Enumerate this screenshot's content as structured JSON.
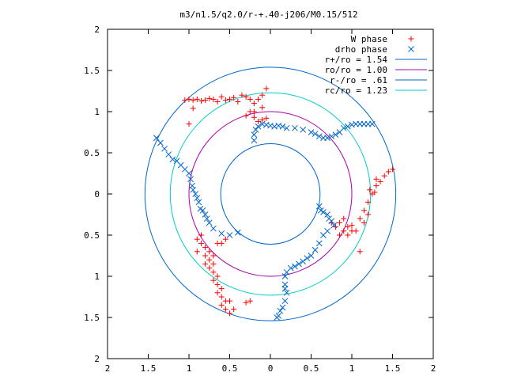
{
  "chart_data": {
    "type": "scatter",
    "title": "m3/n1.5/q2.0/r-+.40-j206/M0.15/512",
    "xlabel": "",
    "ylabel": "",
    "xlim": [
      -2,
      2
    ],
    "ylim": [
      -2,
      2
    ],
    "x_ticks": [
      {
        "value": -2,
        "label": "2"
      },
      {
        "value": -1.5,
        "label": "1.5"
      },
      {
        "value": -1,
        "label": "1"
      },
      {
        "value": -0.5,
        "label": "0.5"
      },
      {
        "value": 0,
        "label": "0"
      },
      {
        "value": 0.5,
        "label": "0.5"
      },
      {
        "value": 1,
        "label": "1"
      },
      {
        "value": 1.5,
        "label": "1.5"
      },
      {
        "value": 2,
        "label": "2"
      }
    ],
    "y_ticks": [
      {
        "value": 2,
        "label": "2"
      },
      {
        "value": 1.5,
        "label": "1.5"
      },
      {
        "value": 1,
        "label": "1"
      },
      {
        "value": 0.5,
        "label": "0.5"
      },
      {
        "value": 0,
        "label": "0"
      },
      {
        "value": -0.5,
        "label": "0.5"
      },
      {
        "value": -1,
        "label": "1"
      },
      {
        "value": -1.5,
        "label": "1.5"
      },
      {
        "value": -2,
        "label": "2"
      }
    ],
    "grid": false,
    "legend_position": "top-right",
    "series": [
      {
        "name": "W phase",
        "marker": "plus",
        "color": "#ff0000",
        "points": [
          [
            -0.05,
            1.28
          ],
          [
            -0.1,
            1.2
          ],
          [
            -0.15,
            1.15
          ],
          [
            -0.2,
            1.1
          ],
          [
            -0.25,
            1.15
          ],
          [
            -0.3,
            1.18
          ],
          [
            -0.35,
            1.2
          ],
          [
            -0.4,
            1.12
          ],
          [
            -0.45,
            1.17
          ],
          [
            -0.5,
            1.15
          ],
          [
            -0.55,
            1.14
          ],
          [
            -0.6,
            1.18
          ],
          [
            -0.65,
            1.12
          ],
          [
            -0.7,
            1.15
          ],
          [
            -0.75,
            1.16
          ],
          [
            -0.8,
            1.14
          ],
          [
            -0.85,
            1.13
          ],
          [
            -0.9,
            1.15
          ],
          [
            -0.95,
            1.14
          ],
          [
            -1.0,
            1.15
          ],
          [
            -1.05,
            1.14
          ],
          [
            -0.25,
            1.0
          ],
          [
            -0.3,
            0.95
          ],
          [
            -0.2,
            0.93
          ],
          [
            -0.1,
            0.9
          ],
          [
            -0.15,
            0.88
          ],
          [
            -0.05,
            0.92
          ],
          [
            -0.1,
            1.05
          ],
          [
            -0.2,
            1.0
          ],
          [
            -0.95,
            1.04
          ],
          [
            -1.0,
            0.85
          ],
          [
            0.8,
            -0.4
          ],
          [
            0.85,
            -0.35
          ],
          [
            0.9,
            -0.45
          ],
          [
            0.95,
            -0.4
          ],
          [
            1.0,
            -0.38
          ],
          [
            1.05,
            -0.45
          ],
          [
            0.85,
            -0.5
          ],
          [
            0.9,
            -0.3
          ],
          [
            0.95,
            -0.5
          ],
          [
            1.0,
            -0.45
          ],
          [
            0.75,
            -0.35
          ],
          [
            1.1,
            -0.3
          ],
          [
            1.15,
            -0.2
          ],
          [
            1.2,
            -0.1
          ],
          [
            1.25,
            0.0
          ],
          [
            1.3,
            0.1
          ],
          [
            1.35,
            0.15
          ],
          [
            1.4,
            0.22
          ],
          [
            1.45,
            0.27
          ],
          [
            1.5,
            0.3
          ],
          [
            1.22,
            0.05
          ],
          [
            1.28,
            0.02
          ],
          [
            1.1,
            -0.7
          ],
          [
            1.15,
            -0.35
          ],
          [
            1.2,
            -0.25
          ],
          [
            1.3,
            0.18
          ],
          [
            -0.85,
            -0.5
          ],
          [
            -0.9,
            -0.55
          ],
          [
            -0.85,
            -0.6
          ],
          [
            -0.8,
            -0.65
          ],
          [
            -0.75,
            -0.7
          ],
          [
            -0.8,
            -0.75
          ],
          [
            -0.75,
            -0.8
          ],
          [
            -0.7,
            -0.85
          ],
          [
            -0.75,
            -0.9
          ],
          [
            -0.7,
            -0.95
          ],
          [
            -0.65,
            -1.0
          ],
          [
            -0.7,
            -1.05
          ],
          [
            -0.65,
            -1.1
          ],
          [
            -0.6,
            -1.15
          ],
          [
            -0.65,
            -1.2
          ],
          [
            -0.6,
            -1.25
          ],
          [
            -0.55,
            -1.3
          ],
          [
            -0.6,
            -1.35
          ],
          [
            -0.55,
            -1.4
          ],
          [
            -0.5,
            -1.45
          ],
          [
            -0.7,
            -0.75
          ],
          [
            -0.8,
            -0.85
          ],
          [
            -0.9,
            -0.7
          ],
          [
            -0.6,
            -0.6
          ],
          [
            -0.55,
            -0.55
          ],
          [
            -0.5,
            -1.3
          ],
          [
            -0.45,
            -1.4
          ],
          [
            -0.25,
            -1.3
          ],
          [
            -0.3,
            -1.32
          ],
          [
            -0.65,
            -0.6
          ]
        ]
      },
      {
        "name": "drho phase",
        "marker": "cross",
        "color": "#0066cc",
        "points": [
          [
            -1.4,
            0.68
          ],
          [
            -1.35,
            0.62
          ],
          [
            -1.3,
            0.55
          ],
          [
            -1.25,
            0.48
          ],
          [
            -1.2,
            0.42
          ],
          [
            -1.15,
            0.4
          ],
          [
            -1.1,
            0.35
          ],
          [
            -1.05,
            0.3
          ],
          [
            -1.0,
            0.25
          ],
          [
            -0.98,
            0.18
          ],
          [
            -0.96,
            0.1
          ],
          [
            -0.95,
            0.05
          ],
          [
            -0.92,
            0.0
          ],
          [
            -0.9,
            -0.05
          ],
          [
            -0.88,
            -0.1
          ],
          [
            -0.86,
            -0.18
          ],
          [
            -0.83,
            -0.2
          ],
          [
            -0.8,
            -0.25
          ],
          [
            -0.78,
            -0.3
          ],
          [
            -0.75,
            -0.35
          ],
          [
            -0.7,
            -0.42
          ],
          [
            -0.6,
            -0.48
          ],
          [
            -0.5,
            -0.5
          ],
          [
            -0.4,
            -0.47
          ],
          [
            -0.2,
            0.65
          ],
          [
            -0.2,
            0.72
          ],
          [
            -0.18,
            0.78
          ],
          [
            -0.15,
            0.82
          ],
          [
            -0.1,
            0.85
          ],
          [
            -0.05,
            0.84
          ],
          [
            0.0,
            0.83
          ],
          [
            0.05,
            0.82
          ],
          [
            0.1,
            0.83
          ],
          [
            0.15,
            0.82
          ],
          [
            0.2,
            0.8
          ],
          [
            0.3,
            0.8
          ],
          [
            0.4,
            0.78
          ],
          [
            0.5,
            0.75
          ],
          [
            0.55,
            0.73
          ],
          [
            0.6,
            0.7
          ],
          [
            0.65,
            0.68
          ],
          [
            0.7,
            0.68
          ],
          [
            0.75,
            0.7
          ],
          [
            0.8,
            0.72
          ],
          [
            0.85,
            0.75
          ],
          [
            0.9,
            0.8
          ],
          [
            0.95,
            0.82
          ],
          [
            1.0,
            0.84
          ],
          [
            1.05,
            0.85
          ],
          [
            1.1,
            0.85
          ],
          [
            1.15,
            0.85
          ],
          [
            1.2,
            0.85
          ],
          [
            1.25,
            0.85
          ],
          [
            0.6,
            -0.15
          ],
          [
            0.62,
            -0.2
          ],
          [
            0.65,
            -0.22
          ],
          [
            0.7,
            -0.25
          ],
          [
            0.72,
            -0.3
          ],
          [
            0.75,
            -0.33
          ],
          [
            0.78,
            -0.38
          ],
          [
            0.7,
            -0.45
          ],
          [
            0.65,
            -0.5
          ],
          [
            0.6,
            -0.6
          ],
          [
            0.55,
            -0.68
          ],
          [
            0.5,
            -0.75
          ],
          [
            0.45,
            -0.78
          ],
          [
            0.4,
            -0.82
          ],
          [
            0.35,
            -0.85
          ],
          [
            0.3,
            -0.88
          ],
          [
            0.25,
            -0.9
          ],
          [
            0.2,
            -0.95
          ],
          [
            0.18,
            -1.0
          ],
          [
            0.18,
            -1.1
          ],
          [
            0.18,
            -1.15
          ],
          [
            0.2,
            -1.2
          ],
          [
            0.18,
            -1.3
          ],
          [
            0.15,
            -1.38
          ],
          [
            0.12,
            -1.42
          ],
          [
            0.1,
            -1.48
          ],
          [
            0.08,
            -1.5
          ]
        ]
      }
    ],
    "curves": [
      {
        "name": "r+/ro = 1.54",
        "radius": 1.54,
        "color": "#0066cc"
      },
      {
        "name": "ro/ro = 1.00",
        "radius": 1.0,
        "color": "#aa00aa"
      },
      {
        "name": "r-/ro = .61",
        "radius": 0.61,
        "color": "#0066cc"
      },
      {
        "name": "rc/ro = 1.23",
        "radius": 1.23,
        "color": "#00cccc"
      }
    ]
  }
}
